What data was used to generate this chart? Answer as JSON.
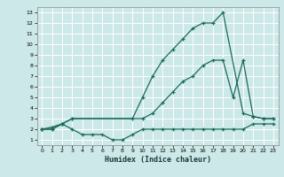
{
  "xlabel": "Humidex (Indice chaleur)",
  "background_color": "#cce8e8",
  "grid_color": "#ffffff",
  "line_color": "#1a6b5a",
  "xlim": [
    -0.5,
    23.5
  ],
  "ylim": [
    0.5,
    13.5
  ],
  "xticks": [
    0,
    1,
    2,
    3,
    4,
    5,
    6,
    7,
    8,
    9,
    10,
    11,
    12,
    13,
    14,
    15,
    16,
    17,
    18,
    19,
    20,
    21,
    22,
    23
  ],
  "yticks": [
    1,
    2,
    3,
    4,
    5,
    6,
    7,
    8,
    9,
    10,
    11,
    12,
    13
  ],
  "line1_x": [
    0,
    1,
    2,
    3,
    9,
    10,
    11,
    12,
    13,
    14,
    15,
    16,
    17,
    18,
    20,
    21,
    22,
    23
  ],
  "line1_y": [
    2,
    2.2,
    2.5,
    3,
    3,
    5,
    7,
    8.5,
    9.5,
    10.5,
    11.5,
    12,
    12,
    13,
    3.5,
    3.2,
    3,
    3
  ],
  "line2_x": [
    0,
    1,
    2,
    3,
    10,
    11,
    12,
    13,
    14,
    15,
    16,
    17,
    18,
    19,
    20,
    21,
    22,
    23
  ],
  "line2_y": [
    2,
    2,
    2.5,
    3,
    3,
    3.5,
    4.5,
    5.5,
    6.5,
    7,
    8,
    8.5,
    8.5,
    5,
    8.5,
    3.2,
    3,
    3
  ],
  "line3_x": [
    0,
    1,
    2,
    3,
    4,
    5,
    6,
    7,
    8,
    9,
    10,
    11,
    12,
    13,
    14,
    15,
    16,
    17,
    18,
    19,
    20,
    21,
    22,
    23
  ],
  "line3_y": [
    2,
    2,
    2.5,
    2,
    1.5,
    1.5,
    1.5,
    1,
    1,
    1.5,
    2,
    2,
    2,
    2,
    2,
    2,
    2,
    2,
    2,
    2,
    2,
    2.5,
    2.5,
    2.5
  ],
  "figsize": [
    3.2,
    2.0
  ],
  "dpi": 100
}
